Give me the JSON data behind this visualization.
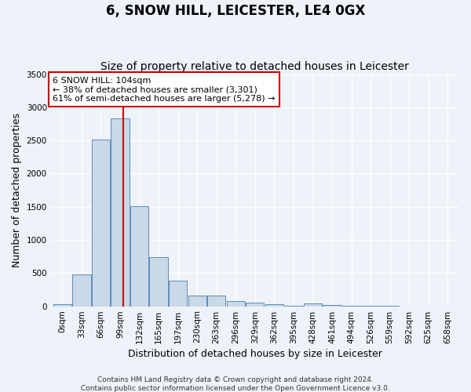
{
  "title": "6, SNOW HILL, LEICESTER, LE4 0GX",
  "subtitle": "Size of property relative to detached houses in Leicester",
  "xlabel": "Distribution of detached houses by size in Leicester",
  "ylabel": "Number of detached properties",
  "bin_labels": [
    "0sqm",
    "33sqm",
    "66sqm",
    "99sqm",
    "132sqm",
    "165sqm",
    "197sqm",
    "230sqm",
    "263sqm",
    "296sqm",
    "329sqm",
    "362sqm",
    "395sqm",
    "428sqm",
    "461sqm",
    "494sqm",
    "526sqm",
    "559sqm",
    "592sqm",
    "625sqm",
    "658sqm"
  ],
  "bar_values": [
    25,
    480,
    2510,
    2830,
    1510,
    740,
    390,
    155,
    155,
    75,
    50,
    30,
    10,
    45,
    15,
    5,
    5,
    5,
    0,
    0,
    0
  ],
  "bar_color": "#c9d9e8",
  "bar_edge_color": "#5b8db8",
  "vline_x": 3.15,
  "vline_color": "#cc0000",
  "annotation_line1": "6 SNOW HILL: 104sqm",
  "annotation_line2": "← 38% of detached houses are smaller (3,301)",
  "annotation_line3": "61% of semi-detached houses are larger (5,278) →",
  "annotation_box_color": "#cc0000",
  "ylim": [
    0,
    3500
  ],
  "yticks": [
    0,
    500,
    1000,
    1500,
    2000,
    2500,
    3000,
    3500
  ],
  "footer": "Contains HM Land Registry data © Crown copyright and database right 2024.\nContains public sector information licensed under the Open Government Licence v3.0.",
  "bg_color": "#eef2f9",
  "grid_color": "#ffffff",
  "title_fontsize": 12,
  "subtitle_fontsize": 10,
  "axis_label_fontsize": 9,
  "tick_fontsize": 7.5,
  "annotation_fontsize": 8,
  "footer_fontsize": 6.5
}
